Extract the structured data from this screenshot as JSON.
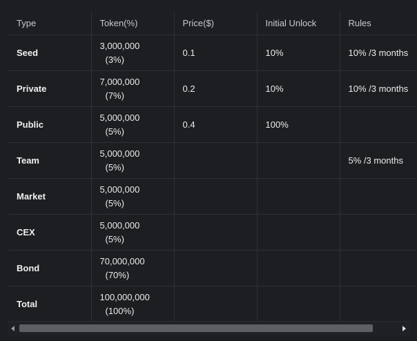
{
  "table": {
    "headers": [
      "Type",
      "Token(%)",
      "Price($)",
      "Initial Unlock",
      "Rules"
    ],
    "rows": [
      {
        "type": "Seed",
        "token_amount": "3,000,000",
        "token_pct": "(3%)",
        "price": "0.1",
        "initial_unlock": "10%",
        "rules": "10% /3 months"
      },
      {
        "type": "Private",
        "token_amount": "7,000,000",
        "token_pct": "(7%)",
        "price": "0.2",
        "initial_unlock": "10%",
        "rules": "10% /3 months"
      },
      {
        "type": "Public",
        "token_amount": "5,000,000",
        "token_pct": "(5%)",
        "price": "0.4",
        "initial_unlock": "100%",
        "rules": ""
      },
      {
        "type": "Team",
        "token_amount": "5,000,000",
        "token_pct": "(5%)",
        "price": "",
        "initial_unlock": "",
        "rules": "5% /3 months"
      },
      {
        "type": "Market",
        "token_amount": "5,000,000",
        "token_pct": "(5%)",
        "price": "",
        "initial_unlock": "",
        "rules": ""
      },
      {
        "type": "CEX",
        "token_amount": "5,000,000",
        "token_pct": "(5%)",
        "price": "",
        "initial_unlock": "",
        "rules": ""
      },
      {
        "type": "Bond",
        "token_amount": "70,000,000",
        "token_pct": "(70%)",
        "price": "",
        "initial_unlock": "",
        "rules": ""
      },
      {
        "type": "Total",
        "token_amount": "100,000,000",
        "token_pct": "(100%)",
        "price": "",
        "initial_unlock": "",
        "rules": ""
      }
    ]
  },
  "scrollbar": {
    "left_icon": "arrow-left-icon",
    "right_icon": "arrow-right-icon",
    "scroll_position": 0.0
  },
  "colors": {
    "background": "#1c1e21",
    "grid_line": "#2e3135",
    "text": "#ececec",
    "thumb": "#5d5f62"
  }
}
